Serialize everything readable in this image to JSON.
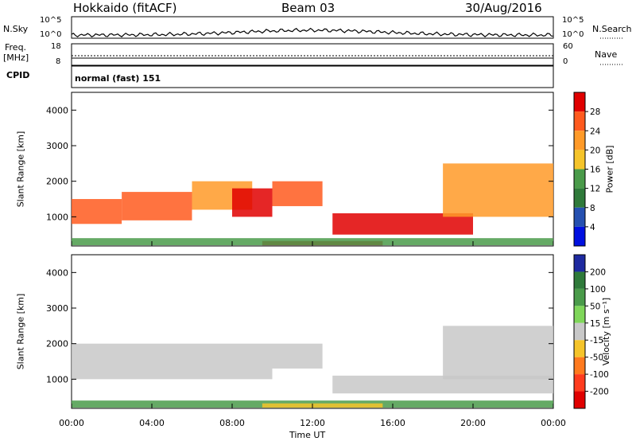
{
  "header": {
    "site": "Hokkaido (fitACF)",
    "beam": "Beam 03",
    "date": "30/Aug/2016"
  },
  "top_panels": {
    "nsky_label": "N.Sky",
    "nsky_ticks": [
      "10^5",
      "10^0"
    ],
    "nsearch_label": "N.Search",
    "nsearch_ticks": [
      "10^5",
      "10^0"
    ],
    "freq_label": "Freq.",
    "freq_unit": "[MHz]",
    "freq_ticks": [
      "18",
      "8"
    ],
    "nave_label": "Nave",
    "nave_ticks": [
      "60",
      "0"
    ],
    "cpid_label": "CPID",
    "cpid_value": "normal (fast) 151"
  },
  "chart_data": [
    {
      "type": "heatmap",
      "name": "power",
      "ylabel": "Slant Range [km]",
      "y_ticks": [
        "4000",
        "3000",
        "2000",
        "1000"
      ],
      "ylim": [
        180,
        4500
      ],
      "colorbar_label": "Power [dB]",
      "colorbar_ticks": [
        "28",
        "24",
        "20",
        "16",
        "12",
        "8",
        "4"
      ],
      "colorbar_colors": [
        "#e00000",
        "#ff5a1e",
        "#ff9a28",
        "#f5c42a",
        "#4a9b4a",
        "#2f7a3a",
        "#2550b0",
        "#0010e0"
      ],
      "regions": [
        {
          "t": [
            0.0,
            2.5
          ],
          "r": [
            800,
            1500
          ],
          "color": "#ff5a1e"
        },
        {
          "t": [
            2.5,
            6.0
          ],
          "r": [
            900,
            1700
          ],
          "color": "#ff5a1e"
        },
        {
          "t": [
            6.0,
            9.0
          ],
          "r": [
            1200,
            2000
          ],
          "color": "#ff9a28"
        },
        {
          "t": [
            8.0,
            10.0
          ],
          "r": [
            1000,
            1800
          ],
          "color": "#e00000"
        },
        {
          "t": [
            10.0,
            12.5
          ],
          "r": [
            1300,
            2000
          ],
          "color": "#ff5a1e"
        },
        {
          "t": [
            13.0,
            20.0
          ],
          "r": [
            500,
            1100
          ],
          "color": "#e00000"
        },
        {
          "t": [
            9.5,
            15.5
          ],
          "r": [
            200,
            320
          ],
          "color": "#e00000"
        },
        {
          "t": [
            18.5,
            24.0
          ],
          "r": [
            1000,
            2500
          ],
          "color": "#ff9a28"
        },
        {
          "t": [
            0.0,
            24.0
          ],
          "r": [
            200,
            400
          ],
          "color": "#4a9b4a"
        }
      ]
    },
    {
      "type": "heatmap",
      "name": "velocity",
      "ylabel": "Slant Range [km]",
      "y_ticks": [
        "4000",
        "3000",
        "2000",
        "1000"
      ],
      "ylim": [
        180,
        4500
      ],
      "colorbar_label": "Velocity [m s⁻¹]",
      "colorbar_ticks": [
        "200",
        "100",
        "50",
        "15",
        "-15",
        "-50",
        "-100",
        "-200"
      ],
      "colorbar_colors": [
        "#1e2aa0",
        "#2f7a3a",
        "#4a9b4a",
        "#7fd65a",
        "#c8c8c8",
        "#f5c42a",
        "#ff7a1e",
        "#ff3c1e",
        "#e00000"
      ],
      "regions": [
        {
          "t": [
            0.0,
            10.0
          ],
          "r": [
            1000,
            2000
          ],
          "color": "#c8c8c8"
        },
        {
          "t": [
            10.0,
            12.5
          ],
          "r": [
            1300,
            2000
          ],
          "color": "#c8c8c8"
        },
        {
          "t": [
            13.0,
            24.0
          ],
          "r": [
            600,
            1100
          ],
          "color": "#c8c8c8"
        },
        {
          "t": [
            0.0,
            24.0
          ],
          "r": [
            200,
            400
          ],
          "color": "#4a9b4a"
        },
        {
          "t": [
            9.5,
            15.5
          ],
          "r": [
            200,
            320
          ],
          "color": "#f5c42a"
        },
        {
          "t": [
            18.5,
            24.0
          ],
          "r": [
            1000,
            2500
          ],
          "color": "#c8c8c8"
        }
      ]
    }
  ],
  "x_ticks": [
    "00:00",
    "04:00",
    "08:00",
    "12:00",
    "16:00",
    "20:00",
    "00:00"
  ],
  "x_label": "Time UT"
}
